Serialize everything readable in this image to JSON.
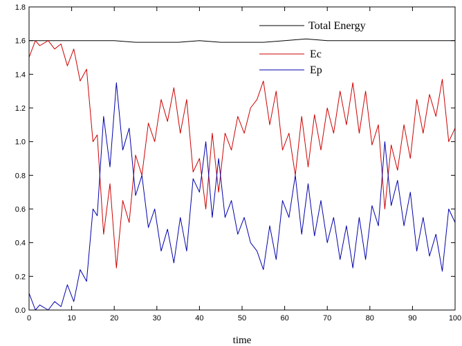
{
  "chart_data": {
    "type": "line",
    "title": "",
    "xlabel": "time",
    "ylabel": "",
    "xlim": [
      0,
      100
    ],
    "ylim": [
      0,
      1.8
    ],
    "x_ticks": [
      "0",
      "10",
      "20",
      "30",
      "40",
      "50",
      "60",
      "70",
      "80",
      "90",
      "100"
    ],
    "y_ticks": [
      "0.0",
      "0.2",
      "0.4",
      "0.6",
      "0.8",
      "1.0",
      "1.2",
      "1.4",
      "1.6",
      "1.8"
    ],
    "grid": false,
    "legend_position": "top-right",
    "series": [
      {
        "name": "Total Energy",
        "color": "#000000",
        "x": [
          0,
          5,
          10,
          15,
          20,
          25,
          30,
          35,
          40,
          45,
          50,
          55,
          60,
          65,
          70,
          75,
          80,
          85,
          90,
          95,
          100
        ],
        "y": [
          1.6,
          1.6,
          1.6,
          1.6,
          1.6,
          1.59,
          1.59,
          1.59,
          1.6,
          1.59,
          1.59,
          1.59,
          1.6,
          1.61,
          1.6,
          1.6,
          1.6,
          1.6,
          1.6,
          1.6,
          1.6
        ]
      },
      {
        "name": "Ec",
        "color": "#cc0000",
        "x": [
          0,
          1.5,
          2.5,
          4.5,
          6,
          7.5,
          9,
          10.5,
          12,
          13.5,
          15,
          16,
          17.5,
          19,
          20.5,
          22,
          23.5,
          25,
          26.5,
          28,
          29.5,
          31,
          32.5,
          34,
          35.5,
          37,
          38.5,
          40,
          41.5,
          43,
          44.5,
          46,
          47.5,
          49,
          50.5,
          52,
          53.5,
          55,
          56.5,
          58,
          59.5,
          61,
          62.5,
          64,
          65.5,
          67,
          68.5,
          70,
          71.5,
          73,
          74.5,
          76,
          77.5,
          79,
          80.5,
          82,
          83.5,
          85,
          86.5,
          88,
          89.5,
          91,
          92.5,
          94,
          95.5,
          97,
          98.5,
          100
        ],
        "y": [
          1.5,
          1.6,
          1.57,
          1.6,
          1.55,
          1.58,
          1.45,
          1.55,
          1.36,
          1.43,
          1.0,
          1.04,
          0.45,
          0.75,
          0.25,
          0.65,
          0.52,
          0.92,
          0.8,
          1.11,
          1.0,
          1.25,
          1.12,
          1.32,
          1.05,
          1.25,
          0.82,
          0.9,
          0.6,
          1.05,
          0.7,
          1.05,
          0.95,
          1.15,
          1.05,
          1.2,
          1.25,
          1.36,
          1.1,
          1.3,
          0.95,
          1.05,
          0.8,
          1.15,
          0.85,
          1.16,
          0.95,
          1.2,
          1.05,
          1.3,
          1.1,
          1.35,
          1.05,
          1.3,
          0.98,
          1.1,
          0.6,
          0.98,
          0.83,
          1.1,
          0.9,
          1.25,
          1.05,
          1.28,
          1.15,
          1.37,
          1.0,
          1.08
        ]
      },
      {
        "name": "Ep",
        "color": "#0000aa",
        "x": [
          0,
          1.5,
          2.5,
          4.5,
          6,
          7.5,
          9,
          10.5,
          12,
          13.5,
          15,
          16,
          17.5,
          19,
          20.5,
          22,
          23.5,
          25,
          26.5,
          28,
          29.5,
          31,
          32.5,
          34,
          35.5,
          37,
          38.5,
          40,
          41.5,
          43,
          44.5,
          46,
          47.5,
          49,
          50.5,
          52,
          53.5,
          55,
          56.5,
          58,
          59.5,
          61,
          62.5,
          64,
          65.5,
          67,
          68.5,
          70,
          71.5,
          73,
          74.5,
          76,
          77.5,
          79,
          80.5,
          82,
          83.5,
          85,
          86.5,
          88,
          89.5,
          91,
          92.5,
          94,
          95.5,
          97,
          98.5,
          100
        ],
        "y": [
          0.1,
          0.0,
          0.03,
          0.0,
          0.05,
          0.02,
          0.15,
          0.05,
          0.24,
          0.17,
          0.6,
          0.56,
          1.15,
          0.85,
          1.35,
          0.95,
          1.08,
          0.68,
          0.8,
          0.49,
          0.6,
          0.35,
          0.48,
          0.28,
          0.55,
          0.35,
          0.78,
          0.7,
          1.0,
          0.55,
          0.9,
          0.55,
          0.65,
          0.45,
          0.55,
          0.4,
          0.35,
          0.24,
          0.5,
          0.3,
          0.65,
          0.55,
          0.8,
          0.45,
          0.75,
          0.44,
          0.65,
          0.4,
          0.55,
          0.3,
          0.5,
          0.25,
          0.55,
          0.3,
          0.62,
          0.5,
          1.0,
          0.62,
          0.77,
          0.5,
          0.7,
          0.35,
          0.55,
          0.32,
          0.45,
          0.23,
          0.6,
          0.52
        ]
      }
    ]
  }
}
